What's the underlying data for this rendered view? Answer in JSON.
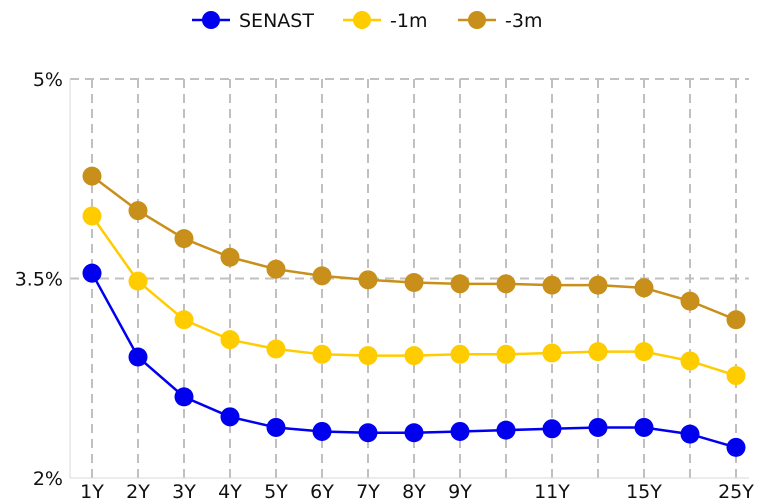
{
  "chart_data": {
    "type": "line",
    "title": "",
    "xlabel": "",
    "ylabel": "",
    "x_positions": [
      1,
      2,
      3,
      4,
      5,
      6,
      7,
      8,
      9,
      10,
      11,
      12,
      13,
      14,
      15
    ],
    "x_tick_labels": [
      {
        "pos": 1,
        "label": "1Y"
      },
      {
        "pos": 2,
        "label": "2Y"
      },
      {
        "pos": 3,
        "label": "3Y"
      },
      {
        "pos": 4,
        "label": "4Y"
      },
      {
        "pos": 5,
        "label": "5Y"
      },
      {
        "pos": 6,
        "label": "6Y"
      },
      {
        "pos": 7,
        "label": "7Y"
      },
      {
        "pos": 8,
        "label": "8Y"
      },
      {
        "pos": 9,
        "label": "9Y"
      },
      {
        "pos": 11,
        "label": "11Y"
      },
      {
        "pos": 13,
        "label": "15Y"
      },
      {
        "pos": 15,
        "label": "25Y"
      }
    ],
    "y_ticks": [
      {
        "value": 2.0,
        "label": "2%"
      },
      {
        "value": 3.5,
        "label": "3.5%"
      },
      {
        "value": 5.0,
        "label": "5%"
      }
    ],
    "ylim": [
      2.0,
      5.0
    ],
    "grid": true,
    "legend_position": "top-center",
    "series": [
      {
        "name": "SENAST",
        "color": "#0000ee",
        "values": [
          3.54,
          2.91,
          2.61,
          2.46,
          2.38,
          2.35,
          2.34,
          2.34,
          2.35,
          2.36,
          2.37,
          2.38,
          2.38,
          2.33,
          2.23
        ]
      },
      {
        "name": "-1m",
        "color": "#ffcc00",
        "values": [
          3.97,
          3.48,
          3.19,
          3.04,
          2.97,
          2.93,
          2.92,
          2.92,
          2.93,
          2.93,
          2.94,
          2.95,
          2.95,
          2.88,
          2.77
        ]
      },
      {
        "name": "-3m",
        "color": "#c8901a",
        "values": [
          4.27,
          4.01,
          3.8,
          3.66,
          3.57,
          3.52,
          3.49,
          3.47,
          3.46,
          3.46,
          3.45,
          3.45,
          3.43,
          3.33,
          3.19
        ]
      }
    ]
  }
}
